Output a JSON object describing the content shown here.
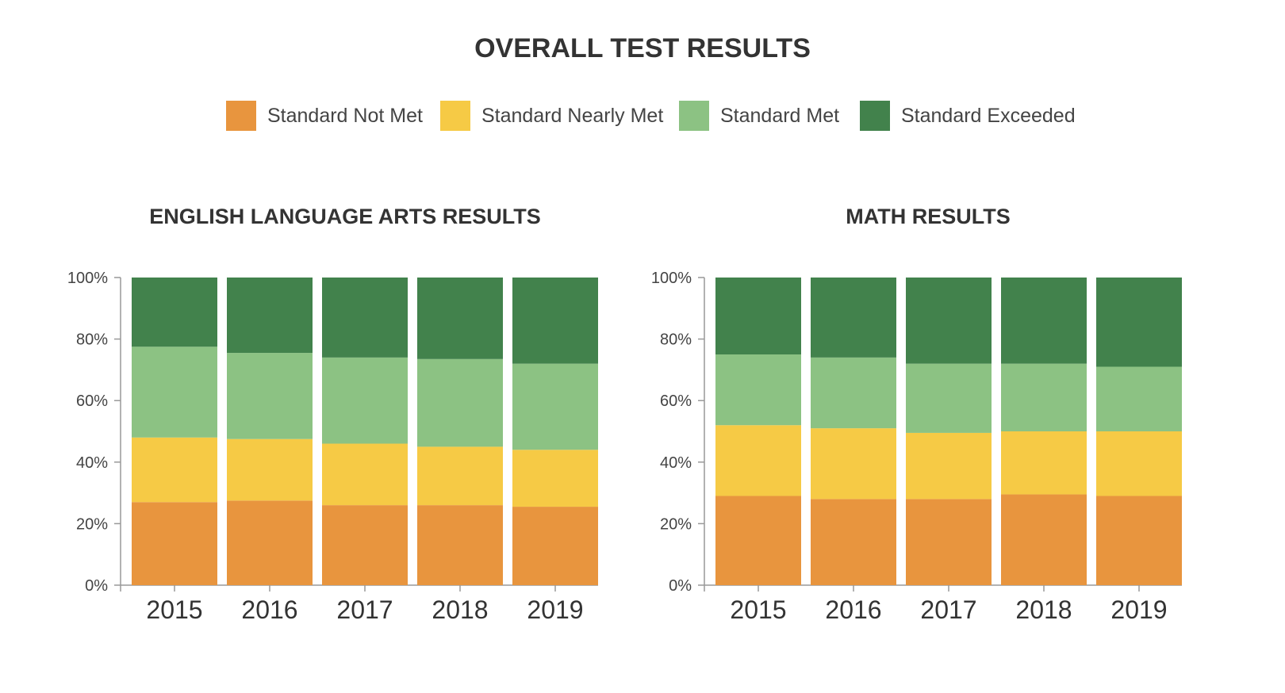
{
  "title": "OVERALL TEST RESULTS",
  "legend": [
    {
      "label": "Standard Not Met",
      "color": "#E8953E"
    },
    {
      "label": "Standard Nearly Met",
      "color": "#F6CA45"
    },
    {
      "label": "Standard Met",
      "color": "#8CC283"
    },
    {
      "label": "Standard Exceeded",
      "color": "#42824C"
    }
  ],
  "chart_data": [
    {
      "type": "bar",
      "stacked": true,
      "title": "ENGLISH LANGUAGE ARTS RESULTS",
      "categories": [
        "2015",
        "2016",
        "2017",
        "2018",
        "2019"
      ],
      "ylim": [
        0,
        100
      ],
      "yticks": [
        "0%",
        "20%",
        "40%",
        "60%",
        "80%",
        "100%"
      ],
      "series": [
        {
          "name": "Standard Not Met",
          "values": [
            27,
            27.5,
            26,
            26,
            25.5
          ]
        },
        {
          "name": "Standard Nearly Met",
          "values": [
            21,
            20,
            20,
            19,
            18.5
          ]
        },
        {
          "name": "Standard Met",
          "values": [
            29.5,
            28,
            28,
            28.5,
            28
          ]
        },
        {
          "name": "Standard Exceeded",
          "values": [
            22.5,
            24.5,
            26,
            26.5,
            28
          ]
        }
      ]
    },
    {
      "type": "bar",
      "stacked": true,
      "title": "MATH RESULTS",
      "categories": [
        "2015",
        "2016",
        "2017",
        "2018",
        "2019"
      ],
      "ylim": [
        0,
        100
      ],
      "yticks": [
        "0%",
        "20%",
        "40%",
        "60%",
        "80%",
        "100%"
      ],
      "series": [
        {
          "name": "Standard Not Met",
          "values": [
            29,
            28,
            28,
            29.5,
            29
          ]
        },
        {
          "name": "Standard Nearly Met",
          "values": [
            23,
            23,
            21.5,
            20.5,
            21
          ]
        },
        {
          "name": "Standard Met",
          "values": [
            23,
            23,
            22.5,
            22,
            21
          ]
        },
        {
          "name": "Standard Exceeded",
          "values": [
            25,
            26,
            28,
            28,
            29
          ]
        }
      ]
    }
  ]
}
